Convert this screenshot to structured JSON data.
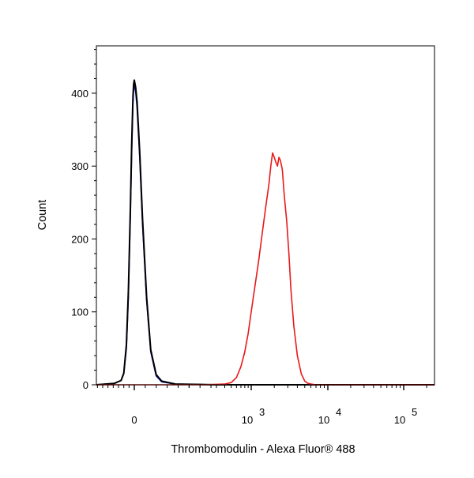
{
  "chart_data": {
    "type": "line",
    "title": "",
    "xlabel": "Thrombomodulin - Alexa Fluor® 488",
    "ylabel": "Count",
    "x_scale": "biexponential",
    "xlim": [
      -300,
      300000
    ],
    "ylim": [
      0,
      465
    ],
    "grid": false,
    "y_ticks": [
      {
        "value": 0,
        "label": "0"
      },
      {
        "value": 100,
        "label": "100"
      },
      {
        "value": 200,
        "label": "200"
      },
      {
        "value": 300,
        "label": "300"
      },
      {
        "value": 400,
        "label": "400"
      }
    ],
    "x_ticks": [
      {
        "value": 0,
        "base": "0",
        "exp": ""
      },
      {
        "value": 1000,
        "base": "10",
        "exp": "3"
      },
      {
        "value": 10000,
        "base": "10",
        "exp": "4"
      },
      {
        "value": 100000,
        "base": "10",
        "exp": "5"
      }
    ],
    "series": [
      {
        "color": "#1c1cd6",
        "x": [
          -300,
          -150,
          -100,
          -80,
          -60,
          -45,
          -30,
          -20,
          -10,
          -5,
          0,
          5,
          10,
          20,
          30,
          45,
          60,
          80,
          100,
          150,
          300,
          1000,
          10000,
          300000
        ],
        "y": [
          0,
          2,
          6,
          15,
          50,
          120,
          230,
          320,
          385,
          405,
          410,
          402,
          380,
          310,
          220,
          115,
          45,
          12,
          4,
          1,
          0,
          0,
          0,
          0
        ]
      },
      {
        "color": "#000000",
        "x": [
          -300,
          -150,
          -100,
          -80,
          -60,
          -45,
          -30,
          -20,
          -10,
          -5,
          0,
          5,
          10,
          20,
          30,
          45,
          60,
          80,
          100,
          150,
          300,
          1000,
          10000,
          300000
        ],
        "y": [
          0,
          2,
          6,
          16,
          55,
          128,
          240,
          330,
          395,
          413,
          418,
          408,
          388,
          318,
          228,
          120,
          48,
          14,
          5,
          1,
          0,
          0,
          0,
          0
        ]
      },
      {
        "color": "#e8191a",
        "x": [
          -300,
          250,
          400,
          500,
          600,
          700,
          800,
          900,
          1000,
          1100,
          1250,
          1400,
          1550,
          1700,
          1800,
          1900,
          2000,
          2100,
          2200,
          2300,
          2400,
          2550,
          2700,
          2900,
          3100,
          3300,
          3600,
          4000,
          4500,
          5000,
          5500,
          6000,
          7000,
          10000,
          300000
        ],
        "y": [
          0,
          0,
          1,
          3,
          10,
          25,
          45,
          70,
          100,
          130,
          170,
          210,
          245,
          275,
          300,
          318,
          312,
          305,
          300,
          312,
          308,
          295,
          260,
          225,
          180,
          130,
          80,
          40,
          15,
          5,
          2,
          1,
          0,
          0,
          0
        ]
      }
    ]
  }
}
